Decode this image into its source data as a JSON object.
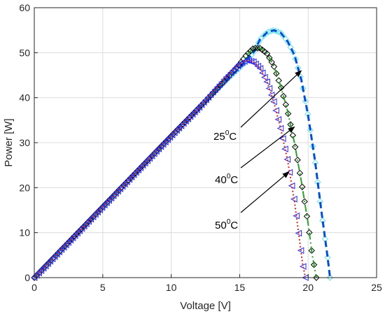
{
  "chart_data": {
    "type": "line",
    "xlabel": "Voltage [V]",
    "ylabel": "Power [W]",
    "xlim": [
      0,
      25
    ],
    "ylim": [
      0,
      60
    ],
    "xticks": [
      "0",
      "5",
      "10",
      "15",
      "20",
      "25"
    ],
    "yticks": [
      "0",
      "10",
      "20",
      "30",
      "40",
      "50",
      "60"
    ],
    "grid": true,
    "series": [
      {
        "color": "#0050d0",
        "style": "dashed",
        "marker": "diamond",
        "marker_color": "#66e0f0",
        "points": [
          [
            0,
            0
          ],
          [
            2,
            6.3
          ],
          [
            4,
            12.6
          ],
          [
            6,
            18.9
          ],
          [
            8,
            25.2
          ],
          [
            10,
            31.5
          ],
          [
            12,
            37.7
          ],
          [
            14,
            43.8
          ],
          [
            15,
            46.6
          ],
          [
            16,
            50.0
          ],
          [
            16.5,
            53.0
          ],
          [
            17,
            54.5
          ],
          [
            17.5,
            55.0
          ],
          [
            18,
            54.4
          ],
          [
            18.5,
            52.5
          ],
          [
            19,
            49.5
          ],
          [
            19.5,
            44.0
          ],
          [
            20,
            36.0
          ],
          [
            20.5,
            26.0
          ],
          [
            21,
            14.0
          ],
          [
            21.4,
            5.0
          ],
          [
            21.6,
            0
          ]
        ]
      },
      {
        "color": "#2ca02c",
        "style": "dash-dot",
        "marker": "diamond",
        "marker_color": "#000000",
        "points": [
          [
            0,
            0
          ],
          [
            2,
            6.3
          ],
          [
            4,
            12.6
          ],
          [
            6,
            18.9
          ],
          [
            8,
            25.2
          ],
          [
            10,
            31.5
          ],
          [
            12,
            37.7
          ],
          [
            14,
            44.0
          ],
          [
            15,
            47.5
          ],
          [
            15.5,
            49.5
          ],
          [
            16,
            51.0
          ],
          [
            16.5,
            51.0
          ],
          [
            17,
            49.8
          ],
          [
            17.5,
            47.0
          ],
          [
            18,
            42.5
          ],
          [
            18.5,
            37.0
          ],
          [
            19,
            30.0
          ],
          [
            19.5,
            21.5
          ],
          [
            20,
            12.0
          ],
          [
            20.3,
            5.0
          ],
          [
            20.6,
            0
          ]
        ]
      },
      {
        "color": "#d62728",
        "style": "dotted",
        "marker": "triangle-left",
        "marker_color": "#2a2af0",
        "points": [
          [
            0,
            0
          ],
          [
            2,
            6.3
          ],
          [
            4,
            12.6
          ],
          [
            6,
            18.9
          ],
          [
            8,
            25.2
          ],
          [
            10,
            31.5
          ],
          [
            12,
            37.7
          ],
          [
            14,
            44.5
          ],
          [
            15,
            47.5
          ],
          [
            15.5,
            48.3
          ],
          [
            16,
            48.0
          ],
          [
            16.5,
            46.5
          ],
          [
            17,
            43.5
          ],
          [
            17.5,
            39.0
          ],
          [
            18,
            33.0
          ],
          [
            18.5,
            26.0
          ],
          [
            19,
            17.0
          ],
          [
            19.3,
            10.0
          ],
          [
            19.6,
            3.0
          ],
          [
            19.8,
            0
          ]
        ]
      }
    ],
    "annotations": [
      {
        "base": "25",
        "sup": "0",
        "unit": "C",
        "arrow_to": [
          19.5,
          46.0
        ]
      },
      {
        "base": "40",
        "sup": "0",
        "unit": "C",
        "arrow_to": [
          19.0,
          33.5
        ]
      },
      {
        "base": "50",
        "sup": "0",
        "unit": "C",
        "arrow_to": [
          18.6,
          23.5
        ]
      }
    ]
  }
}
